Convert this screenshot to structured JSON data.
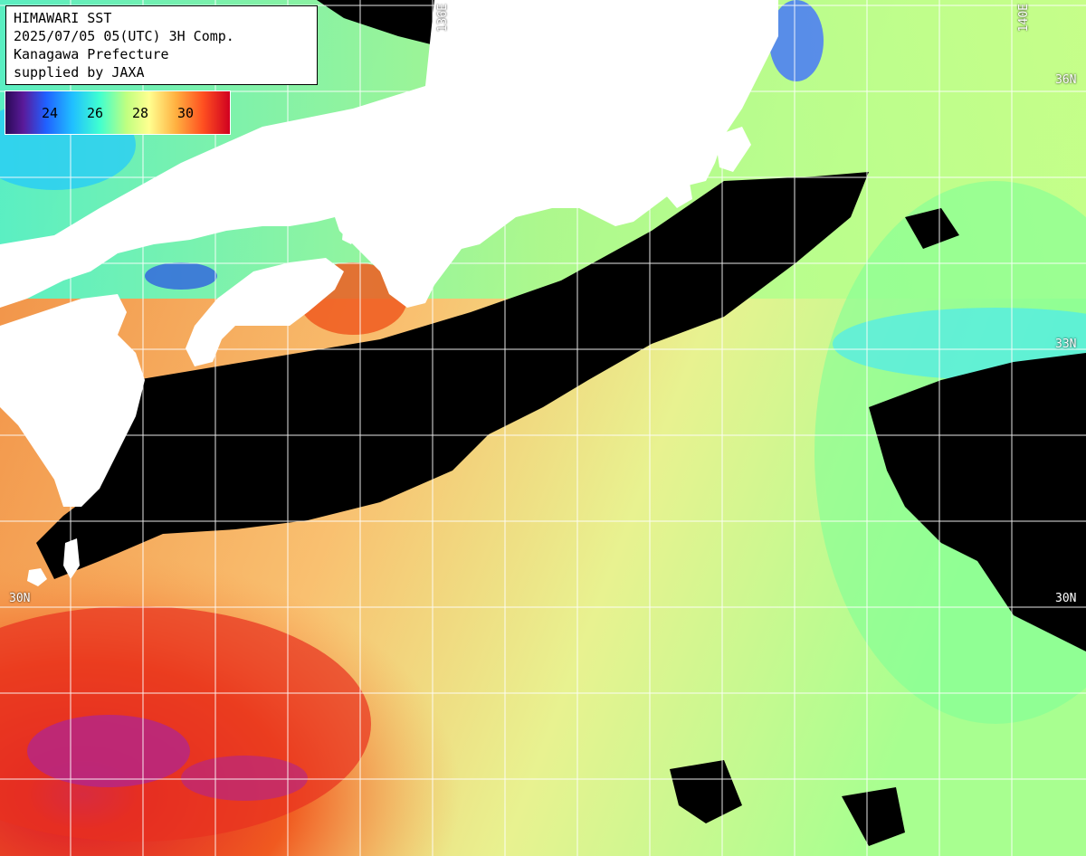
{
  "header": {
    "line1": "HIMAWARI SST",
    "line2": "2025/07/05 05(UTC) 3H Comp.",
    "line3": "Kanagawa Prefecture",
    "line4": "supplied by JAXA"
  },
  "legend": {
    "labels": [
      "24",
      "26",
      "28",
      "30"
    ]
  },
  "grid_labels": {
    "lon_left": "136E",
    "lon_right": "140E",
    "lat_36_right": "36N",
    "lat_33_right": "33N",
    "lat_30_left": "30N",
    "lat_30_right": "30N"
  },
  "colors": {
    "land": "#ffffff",
    "cloud": "#000000",
    "grid": "#ffffff"
  }
}
